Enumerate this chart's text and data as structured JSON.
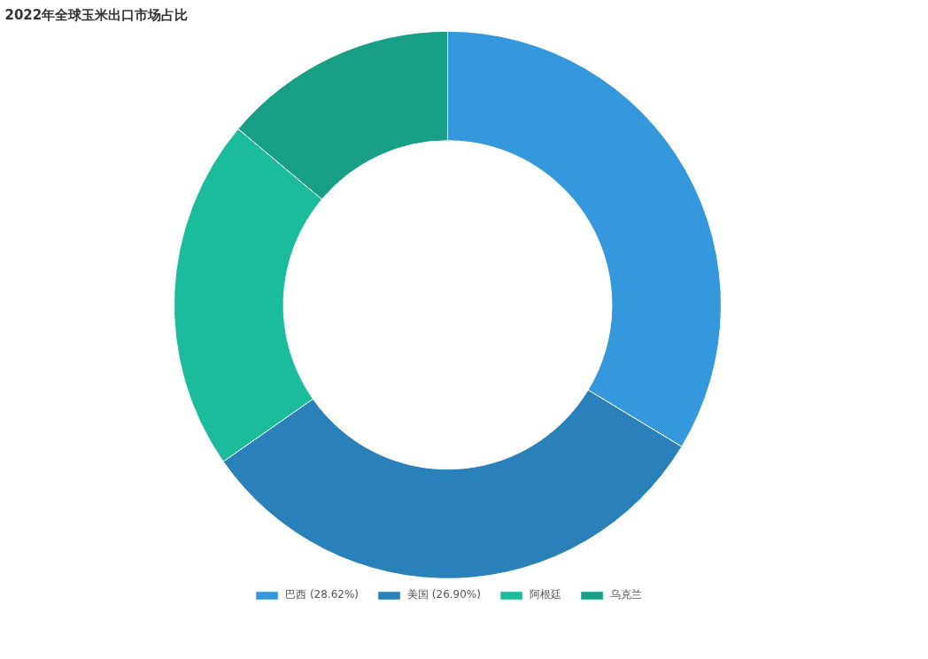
{
  "chart_data": {
    "type": "donut",
    "title": "2022年全球玉米出口市场占比",
    "categories": [
      "巴西 (28.62%)",
      "美国 (26.90%)",
      "阿根廷",
      "乌克兰"
    ],
    "values": [
      28.62,
      26.9,
      17.7,
      11.8
    ],
    "colors": [
      "#3698dc",
      "#2a80b9",
      "#1bbc9b",
      "#17a085"
    ],
    "legend": "bottom"
  }
}
